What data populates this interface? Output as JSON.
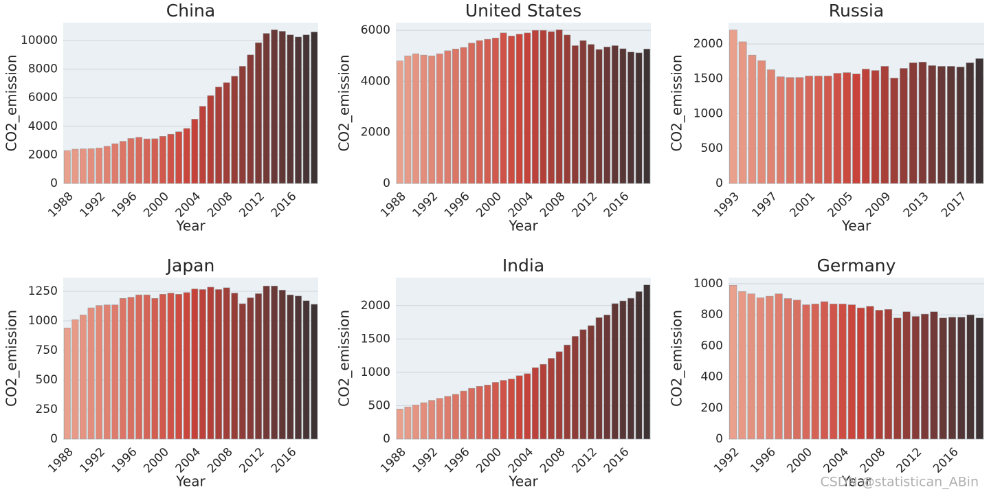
{
  "chart_data": [
    {
      "type": "bar",
      "title": "China",
      "x_label": "Year",
      "y_label": "CO2_emission",
      "categories": [
        "1988",
        null,
        null,
        null,
        "1992",
        null,
        null,
        null,
        "1996",
        null,
        null,
        null,
        "2000",
        null,
        null,
        null,
        "2004",
        null,
        null,
        null,
        "2008",
        null,
        null,
        null,
        "2012",
        null,
        null,
        null,
        "2016",
        null,
        null,
        null
      ],
      "values": [
        2300,
        2400,
        2420,
        2430,
        2480,
        2600,
        2780,
        2950,
        3150,
        3230,
        3120,
        3130,
        3300,
        3450,
        3620,
        3850,
        4500,
        5400,
        6150,
        6750,
        7050,
        7500,
        8200,
        9000,
        9850,
        10500,
        10750,
        10650,
        10400,
        10250,
        10400,
        10600
      ],
      "ylim": [
        0,
        11250
      ],
      "yticks": [
        0,
        2000,
        4000,
        6000,
        8000,
        10000
      ],
      "grid": true,
      "palette": [
        "#e9a08c",
        "#c9433a",
        "#3d3335"
      ]
    },
    {
      "type": "bar",
      "title": "United States",
      "x_label": "Year",
      "y_label": "CO2_emission",
      "categories": [
        "1988",
        null,
        null,
        null,
        "1992",
        null,
        null,
        null,
        "1996",
        null,
        null,
        null,
        "2000",
        null,
        null,
        null,
        "2004",
        null,
        null,
        null,
        "2008",
        null,
        null,
        null,
        "2012",
        null,
        null,
        null,
        "2016",
        null,
        null,
        null
      ],
      "values": [
        4800,
        5000,
        5080,
        5030,
        5000,
        5080,
        5200,
        5270,
        5330,
        5500,
        5600,
        5650,
        5700,
        5900,
        5780,
        5850,
        5900,
        6000,
        6000,
        5950,
        6020,
        5820,
        5400,
        5600,
        5450,
        5250,
        5350,
        5400,
        5280,
        5150,
        5120,
        5270
      ],
      "ylim": [
        0,
        6300
      ],
      "yticks": [
        0,
        2000,
        4000,
        6000
      ],
      "grid": true,
      "palette": [
        "#e9a08c",
        "#c9433a",
        "#3d3335"
      ]
    },
    {
      "type": "bar",
      "title": "Russia",
      "x_label": "Year",
      "y_label": "CO2_emission",
      "categories": [
        "1993",
        null,
        null,
        null,
        "1997",
        null,
        null,
        null,
        "2001",
        null,
        null,
        null,
        "2005",
        null,
        null,
        null,
        "2009",
        null,
        null,
        null,
        "2013",
        null,
        null,
        null,
        "2017",
        null,
        null
      ],
      "values": [
        2200,
        2030,
        1840,
        1760,
        1630,
        1530,
        1520,
        1520,
        1540,
        1540,
        1540,
        1580,
        1590,
        1570,
        1640,
        1620,
        1680,
        1510,
        1650,
        1730,
        1740,
        1690,
        1680,
        1680,
        1670,
        1730,
        1790
      ],
      "ylim": [
        0,
        2305
      ],
      "yticks": [
        0,
        500,
        1000,
        1500,
        2000
      ],
      "grid": true,
      "palette": [
        "#e9a08c",
        "#c9433a",
        "#3d3335"
      ]
    },
    {
      "type": "bar",
      "title": "Japan",
      "x_label": "Year",
      "y_label": "CO2_emission",
      "categories": [
        "1988",
        null,
        null,
        null,
        "1992",
        null,
        null,
        null,
        "1996",
        null,
        null,
        null,
        "2000",
        null,
        null,
        null,
        "2004",
        null,
        null,
        null,
        "2008",
        null,
        null,
        null,
        "2012",
        null,
        null,
        null,
        "2016",
        null,
        null,
        null
      ],
      "values": [
        940,
        1010,
        1050,
        1110,
        1130,
        1135,
        1135,
        1190,
        1200,
        1220,
        1220,
        1190,
        1225,
        1235,
        1225,
        1240,
        1270,
        1265,
        1285,
        1265,
        1280,
        1235,
        1145,
        1195,
        1230,
        1295,
        1295,
        1260,
        1220,
        1210,
        1170,
        1140
      ],
      "ylim": [
        0,
        1366
      ],
      "yticks": [
        0,
        250,
        500,
        750,
        1000,
        1250
      ],
      "grid": true,
      "palette": [
        "#e9a08c",
        "#c9433a",
        "#3d3335"
      ]
    },
    {
      "type": "bar",
      "title": "India",
      "x_label": "Year",
      "y_label": "CO2_emission",
      "categories": [
        "1988",
        null,
        null,
        null,
        "1992",
        null,
        null,
        null,
        "1996",
        null,
        null,
        null,
        "2000",
        null,
        null,
        null,
        "2004",
        null,
        null,
        null,
        "2008",
        null,
        null,
        null,
        "2012",
        null,
        null,
        null,
        "2016",
        null,
        null,
        null
      ],
      "values": [
        450,
        480,
        510,
        545,
        580,
        610,
        640,
        670,
        720,
        760,
        790,
        810,
        850,
        880,
        900,
        950,
        980,
        1070,
        1120,
        1210,
        1310,
        1410,
        1540,
        1640,
        1700,
        1820,
        1860,
        2030,
        2070,
        2110,
        2210,
        2310
      ],
      "ylim": [
        0,
        2420
      ],
      "yticks": [
        0,
        500,
        1000,
        1500,
        2000
      ],
      "grid": true,
      "palette": [
        "#e9a08c",
        "#c9433a",
        "#3d3335"
      ]
    },
    {
      "type": "bar",
      "title": "Germany",
      "x_label": "Year",
      "y_label": "CO2_emission",
      "categories": [
        "1992",
        null,
        null,
        null,
        "1996",
        null,
        null,
        null,
        "2000",
        null,
        null,
        null,
        "2004",
        null,
        null,
        null,
        "2008",
        null,
        null,
        null,
        "2012",
        null,
        null,
        null,
        "2016",
        null,
        null,
        null
      ],
      "values": [
        990,
        950,
        935,
        910,
        920,
        935,
        905,
        895,
        865,
        870,
        885,
        870,
        870,
        865,
        845,
        855,
        830,
        835,
        780,
        820,
        790,
        805,
        820,
        780,
        785,
        785,
        800,
        780
      ],
      "ylim": [
        0,
        1040
      ],
      "yticks": [
        0,
        200,
        400,
        600,
        800,
        1000
      ],
      "grid": true,
      "palette": [
        "#e9a08c",
        "#c9433a",
        "#3d3335"
      ]
    }
  ],
  "watermark": "CSDN @statistican_ABin"
}
